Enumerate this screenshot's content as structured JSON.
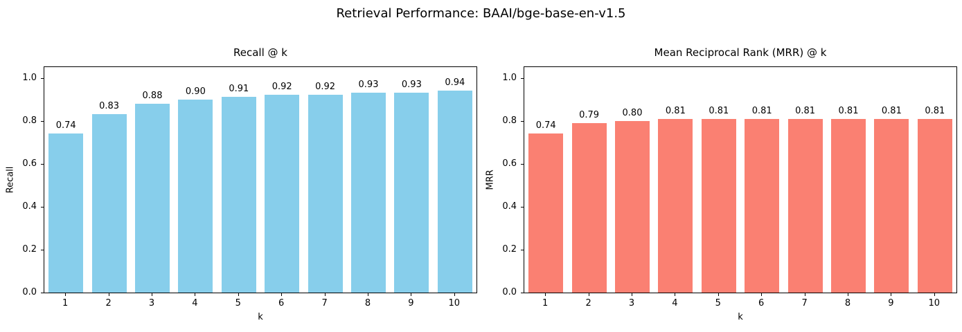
{
  "figure": {
    "suptitle": "Retrieval Performance: BAAI/bge-base-en-v1.5",
    "background_color": "#ffffff",
    "text_color": "#000000",
    "spine_color": "#000000"
  },
  "chart_data": [
    {
      "type": "bar",
      "title": "Recall @ k",
      "xlabel": "k",
      "ylabel": "Recall",
      "categories": [
        "1",
        "2",
        "3",
        "4",
        "5",
        "6",
        "7",
        "8",
        "9",
        "10"
      ],
      "values": [
        0.74,
        0.83,
        0.88,
        0.9,
        0.91,
        0.92,
        0.92,
        0.93,
        0.93,
        0.94
      ],
      "bar_labels": [
        "0.74",
        "0.83",
        "0.88",
        "0.90",
        "0.91",
        "0.92",
        "0.92",
        "0.93",
        "0.93",
        "0.94"
      ],
      "yticks": [
        0.0,
        0.2,
        0.4,
        0.6,
        0.8,
        1.0
      ],
      "ytick_labels": [
        "0.0",
        "0.2",
        "0.4",
        "0.6",
        "0.8",
        "1.0"
      ],
      "ylim": [
        0,
        1.05
      ],
      "bar_color": "#87CEEB",
      "grid": false,
      "legend": null
    },
    {
      "type": "bar",
      "title": "Mean Reciprocal Rank (MRR) @ k",
      "xlabel": "k",
      "ylabel": "MRR",
      "categories": [
        "1",
        "2",
        "3",
        "4",
        "5",
        "6",
        "7",
        "8",
        "9",
        "10"
      ],
      "values": [
        0.74,
        0.79,
        0.8,
        0.81,
        0.81,
        0.81,
        0.81,
        0.81,
        0.81,
        0.81
      ],
      "bar_labels": [
        "0.74",
        "0.79",
        "0.80",
        "0.81",
        "0.81",
        "0.81",
        "0.81",
        "0.81",
        "0.81",
        "0.81"
      ],
      "yticks": [
        0.0,
        0.2,
        0.4,
        0.6,
        0.8,
        1.0
      ],
      "ytick_labels": [
        "0.0",
        "0.2",
        "0.4",
        "0.6",
        "0.8",
        "1.0"
      ],
      "ylim": [
        0,
        1.05
      ],
      "bar_color": "#FA8072",
      "grid": false,
      "legend": null
    }
  ]
}
